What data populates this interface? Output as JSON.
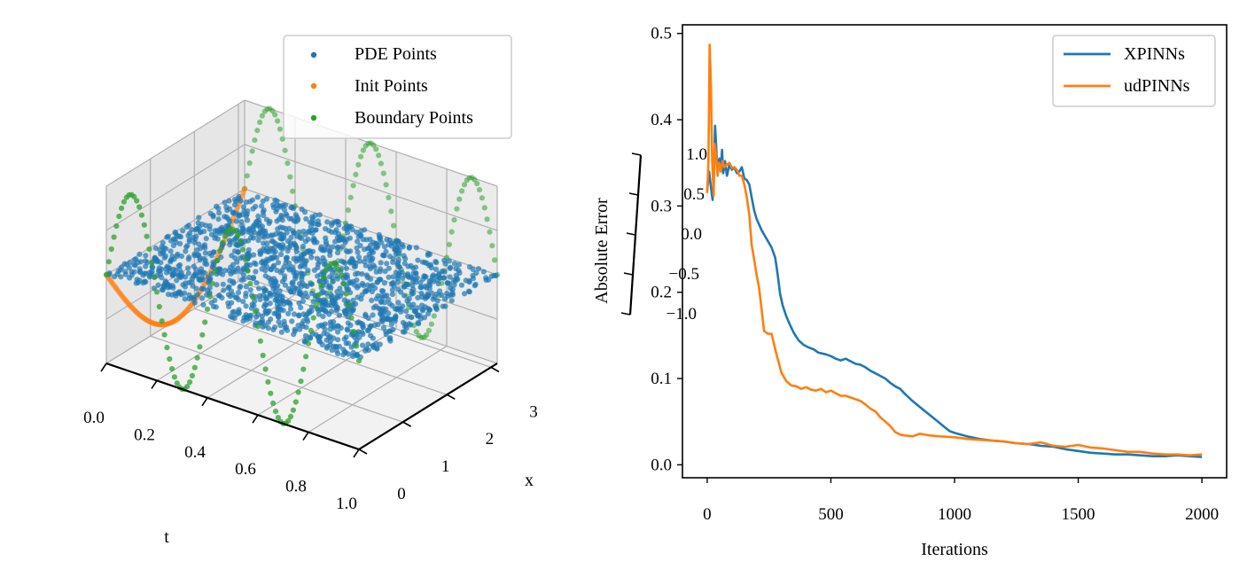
{
  "chart_data": [
    {
      "type": "scatter3d",
      "title": "",
      "axes": {
        "t": {
          "label": "t",
          "range": [
            0,
            1
          ],
          "ticks": [
            "0.0",
            "0.2",
            "0.4",
            "0.6",
            "0.8",
            "1.0"
          ]
        },
        "x": {
          "label": "x",
          "range": [
            0,
            3.1416
          ],
          "ticks": [
            "0",
            "1",
            "2",
            "3"
          ]
        },
        "z": {
          "label": "",
          "range": [
            -1,
            1
          ],
          "ticks": [
            "1.0",
            "0.5",
            "0.0",
            "−0.5",
            "−1.0"
          ]
        }
      },
      "legend": {
        "position": "top-right",
        "entries": [
          "PDE Points",
          "Init Points",
          "Boundary Points"
        ]
      },
      "series": [
        {
          "name": "PDE Points",
          "color": "#1f77b4",
          "description_values": {
            "u": 0,
            "t_range": [
              0,
              1
            ],
            "x_range": [
              0,
              3.1416
            ],
            "count": 2000
          }
        },
        {
          "name": "Init Points",
          "color": "#ff7f0e",
          "description_values": {
            "t": 0,
            "u": "-sin(x)",
            "x_range": [
              0,
              3.1416
            ]
          }
        },
        {
          "name": "Boundary Points",
          "color": "#2ca02c",
          "description_values": {
            "x": [
              0,
              3.1416
            ],
            "t_range": [
              0,
              1
            ]
          }
        }
      ],
      "grid": true
    },
    {
      "type": "line",
      "xlabel": "Iterations",
      "ylabel": "Absolute Error",
      "xlim": [
        -100,
        2100
      ],
      "ylim": [
        -0.015,
        0.51
      ],
      "xticks": [
        0,
        500,
        1000,
        1500,
        2000
      ],
      "yticks": [
        0.0,
        0.1,
        0.2,
        0.3,
        0.4,
        0.5
      ],
      "xtick_labels": [
        "0",
        "500",
        "1000",
        "1500",
        "2000"
      ],
      "ytick_labels": [
        "0.0",
        "0.1",
        "0.2",
        "0.3",
        "0.4",
        "0.5"
      ],
      "legend": {
        "position": "top-right"
      },
      "series": [
        {
          "name": "XPINNs",
          "color": "#1f77b4",
          "points": [
            [
              0,
              0.318
            ],
            [
              8,
              0.34
            ],
            [
              15,
              0.322
            ],
            [
              22,
              0.307
            ],
            [
              28,
              0.342
            ],
            [
              32,
              0.393
            ],
            [
              38,
              0.36
            ],
            [
              44,
              0.34
            ],
            [
              50,
              0.355
            ],
            [
              55,
              0.345
            ],
            [
              60,
              0.365
            ],
            [
              65,
              0.338
            ],
            [
              72,
              0.352
            ],
            [
              80,
              0.335
            ],
            [
              90,
              0.348
            ],
            [
              100,
              0.342
            ],
            [
              110,
              0.345
            ],
            [
              120,
              0.338
            ],
            [
              130,
              0.34
            ],
            [
              140,
              0.345
            ],
            [
              150,
              0.332
            ],
            [
              160,
              0.33
            ],
            [
              170,
              0.325
            ],
            [
              180,
              0.31
            ],
            [
              190,
              0.295
            ],
            [
              200,
              0.285
            ],
            [
              220,
              0.272
            ],
            [
              240,
              0.262
            ],
            [
              260,
              0.252
            ],
            [
              275,
              0.24
            ],
            [
              285,
              0.22
            ],
            [
              295,
              0.198
            ],
            [
              305,
              0.185
            ],
            [
              320,
              0.172
            ],
            [
              335,
              0.162
            ],
            [
              350,
              0.153
            ],
            [
              370,
              0.144
            ],
            [
              390,
              0.139
            ],
            [
              410,
              0.136
            ],
            [
              430,
              0.134
            ],
            [
              450,
              0.13
            ],
            [
              480,
              0.128
            ],
            [
              500,
              0.126
            ],
            [
              520,
              0.123
            ],
            [
              540,
              0.121
            ],
            [
              560,
              0.123
            ],
            [
              580,
              0.12
            ],
            [
              600,
              0.117
            ],
            [
              620,
              0.116
            ],
            [
              640,
              0.113
            ],
            [
              660,
              0.109
            ],
            [
              680,
              0.106
            ],
            [
              700,
              0.103
            ],
            [
              720,
              0.1
            ],
            [
              740,
              0.095
            ],
            [
              760,
              0.091
            ],
            [
              780,
              0.088
            ],
            [
              800,
              0.082
            ],
            [
              830,
              0.074
            ],
            [
              860,
              0.067
            ],
            [
              890,
              0.06
            ],
            [
              920,
              0.053
            ],
            [
              950,
              0.046
            ],
            [
              980,
              0.039
            ],
            [
              1000,
              0.037
            ],
            [
              1050,
              0.033
            ],
            [
              1100,
              0.03
            ],
            [
              1150,
              0.028
            ],
            [
              1200,
              0.027
            ],
            [
              1250,
              0.025
            ],
            [
              1300,
              0.024
            ],
            [
              1350,
              0.022
            ],
            [
              1400,
              0.021
            ],
            [
              1450,
              0.018
            ],
            [
              1500,
              0.016
            ],
            [
              1550,
              0.014
            ],
            [
              1600,
              0.013
            ],
            [
              1650,
              0.012
            ],
            [
              1700,
              0.012
            ],
            [
              1750,
              0.011
            ],
            [
              1800,
              0.01
            ],
            [
              1850,
              0.01
            ],
            [
              1900,
              0.011
            ],
            [
              1950,
              0.01
            ],
            [
              2000,
              0.009
            ]
          ]
        },
        {
          "name": "udPINNs",
          "color": "#ff7f0e",
          "points": [
            [
              0,
              0.315
            ],
            [
              5,
              0.35
            ],
            [
              10,
              0.487
            ],
            [
              15,
              0.44
            ],
            [
              20,
              0.355
            ],
            [
              26,
              0.312
            ],
            [
              30,
              0.372
            ],
            [
              36,
              0.36
            ],
            [
              42,
              0.335
            ],
            [
              48,
              0.35
            ],
            [
              55,
              0.34
            ],
            [
              62,
              0.352
            ],
            [
              70,
              0.345
            ],
            [
              80,
              0.348
            ],
            [
              90,
              0.35
            ],
            [
              100,
              0.344
            ],
            [
              110,
              0.345
            ],
            [
              120,
              0.342
            ],
            [
              130,
              0.335
            ],
            [
              140,
              0.335
            ],
            [
              150,
              0.325
            ],
            [
              160,
              0.31
            ],
            [
              170,
              0.29
            ],
            [
              180,
              0.255
            ],
            [
              190,
              0.238
            ],
            [
              200,
              0.22
            ],
            [
              210,
              0.205
            ],
            [
              220,
              0.18
            ],
            [
              230,
              0.155
            ],
            [
              245,
              0.152
            ],
            [
              260,
              0.152
            ],
            [
              270,
              0.14
            ],
            [
              280,
              0.128
            ],
            [
              290,
              0.118
            ],
            [
              300,
              0.107
            ],
            [
              320,
              0.097
            ],
            [
              340,
              0.092
            ],
            [
              360,
              0.091
            ],
            [
              380,
              0.088
            ],
            [
              400,
              0.09
            ],
            [
              420,
              0.087
            ],
            [
              440,
              0.086
            ],
            [
              460,
              0.088
            ],
            [
              480,
              0.084
            ],
            [
              500,
              0.086
            ],
            [
              520,
              0.083
            ],
            [
              540,
              0.08
            ],
            [
              560,
              0.08
            ],
            [
              580,
              0.078
            ],
            [
              600,
              0.076
            ],
            [
              620,
              0.074
            ],
            [
              640,
              0.07
            ],
            [
              660,
              0.065
            ],
            [
              680,
              0.062
            ],
            [
              700,
              0.055
            ],
            [
              720,
              0.05
            ],
            [
              740,
              0.045
            ],
            [
              760,
              0.038
            ],
            [
              780,
              0.035
            ],
            [
              800,
              0.034
            ],
            [
              830,
              0.033
            ],
            [
              860,
              0.036
            ],
            [
              900,
              0.034
            ],
            [
              940,
              0.033
            ],
            [
              1000,
              0.032
            ],
            [
              1050,
              0.03
            ],
            [
              1100,
              0.029
            ],
            [
              1150,
              0.028
            ],
            [
              1200,
              0.027
            ],
            [
              1250,
              0.025
            ],
            [
              1300,
              0.024
            ],
            [
              1350,
              0.026
            ],
            [
              1400,
              0.022
            ],
            [
              1450,
              0.021
            ],
            [
              1500,
              0.023
            ],
            [
              1550,
              0.02
            ],
            [
              1600,
              0.019
            ],
            [
              1650,
              0.017
            ],
            [
              1700,
              0.015
            ],
            [
              1750,
              0.015
            ],
            [
              1800,
              0.013
            ],
            [
              1850,
              0.012
            ],
            [
              1900,
              0.012
            ],
            [
              1950,
              0.011
            ],
            [
              2000,
              0.012
            ]
          ]
        }
      ]
    }
  ]
}
